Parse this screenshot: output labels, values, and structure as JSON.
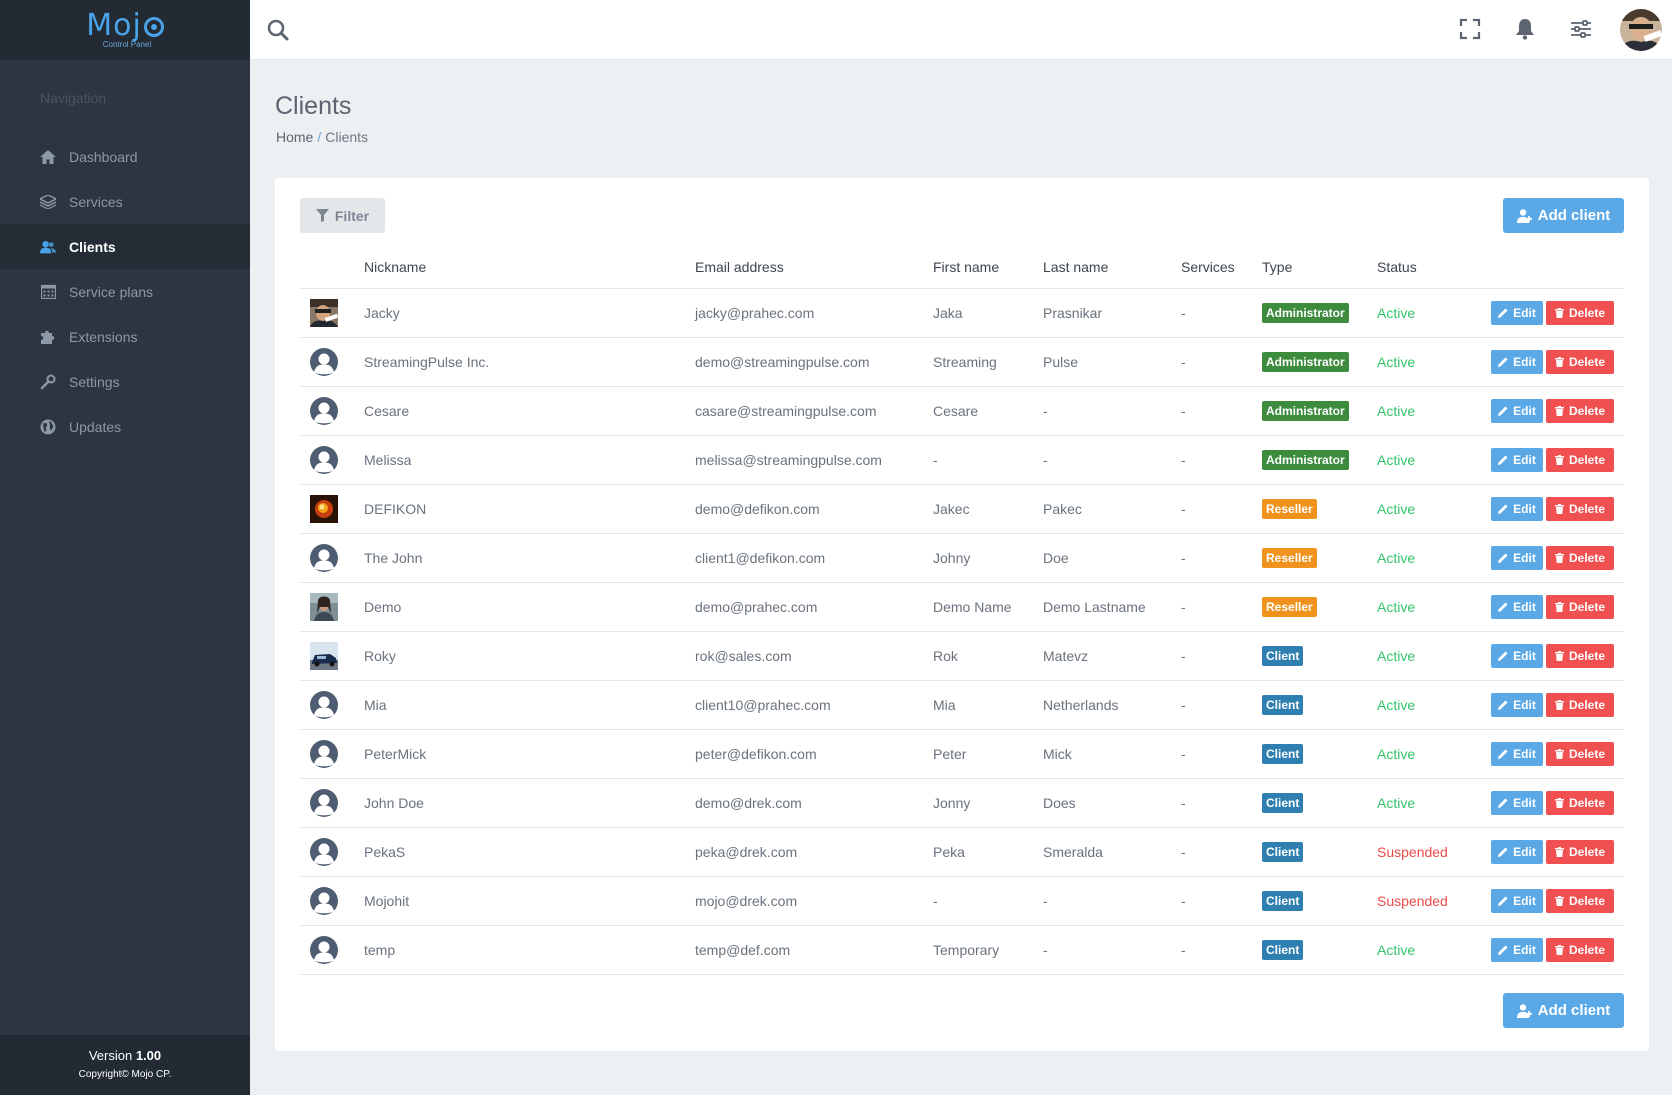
{
  "logo": {
    "name": "Mojo",
    "sub": "Control Panel"
  },
  "sidebar": {
    "heading": "Navigation",
    "items": [
      {
        "label": "Dashboard",
        "icon": "home-icon",
        "active": false
      },
      {
        "label": "Services",
        "icon": "layers-icon",
        "active": false
      },
      {
        "label": "Clients",
        "icon": "users-icon",
        "active": true
      },
      {
        "label": "Service plans",
        "icon": "calendar-icon",
        "active": false
      },
      {
        "label": "Extensions",
        "icon": "puzzle-icon",
        "active": false
      },
      {
        "label": "Settings",
        "icon": "wrench-icon",
        "active": false
      },
      {
        "label": "Updates",
        "icon": "globe-icon",
        "active": false
      }
    ],
    "version_label": "Version",
    "version": "1.00",
    "copyright": "Copyright© Mojo CP."
  },
  "topbar": {
    "icons": [
      "search-icon",
      "fullscreen-icon",
      "bell-icon",
      "sliders-icon",
      "user-avatar"
    ]
  },
  "page": {
    "title": "Clients",
    "breadcrumb": {
      "home": "Home",
      "separator": "/",
      "current": "Clients"
    }
  },
  "toolbar": {
    "filter_label": "Filter",
    "add_label": "Add client"
  },
  "table": {
    "headers": {
      "nickname": "Nickname",
      "email": "Email address",
      "first": "First name",
      "last": "Last name",
      "services": "Services",
      "type": "Type",
      "status": "Status"
    },
    "edit_label": "Edit",
    "delete_label": "Delete",
    "rows": [
      {
        "avatar": "photo-1",
        "nickname": "Jacky",
        "email": "jacky@prahec.com",
        "first": "Jaka",
        "last": "Prasnikar",
        "services": "-",
        "type": "Administrator",
        "status": "Active"
      },
      {
        "avatar": "default",
        "nickname": "StreamingPulse Inc.",
        "email": "demo@streamingpulse.com",
        "first": "Streaming",
        "last": "Pulse",
        "services": "-",
        "type": "Administrator",
        "status": "Active"
      },
      {
        "avatar": "default",
        "nickname": "Cesare",
        "email": "casare@streamingpulse.com",
        "first": "Cesare",
        "last": "-",
        "services": "-",
        "type": "Administrator",
        "status": "Active"
      },
      {
        "avatar": "default",
        "nickname": "Melissa",
        "email": "melissa@streamingpulse.com",
        "first": "-",
        "last": "-",
        "services": "-",
        "type": "Administrator",
        "status": "Active"
      },
      {
        "avatar": "photo-2",
        "nickname": "DEFIKON",
        "email": "demo@defikon.com",
        "first": "Jakec",
        "last": "Pakec",
        "services": "-",
        "type": "Reseller",
        "status": "Active"
      },
      {
        "avatar": "default",
        "nickname": "The John",
        "email": "client1@defikon.com",
        "first": "Johny",
        "last": "Doe",
        "services": "-",
        "type": "Reseller",
        "status": "Active"
      },
      {
        "avatar": "photo-3",
        "nickname": "Demo",
        "email": "demo@prahec.com",
        "first": "Demo Name",
        "last": "Demo Lastname",
        "services": "-",
        "type": "Reseller",
        "status": "Active"
      },
      {
        "avatar": "photo-4",
        "nickname": "Roky",
        "email": "rok@sales.com",
        "first": "Rok",
        "last": "Matevz",
        "services": "-",
        "type": "Client",
        "status": "Active"
      },
      {
        "avatar": "default",
        "nickname": "Mia",
        "email": "client10@prahec.com",
        "first": "Mia",
        "last": "Netherlands",
        "services": "-",
        "type": "Client",
        "status": "Active"
      },
      {
        "avatar": "default",
        "nickname": "PeterMick",
        "email": "peter@defikon.com",
        "first": "Peter",
        "last": "Mick",
        "services": "-",
        "type": "Client",
        "status": "Active"
      },
      {
        "avatar": "default",
        "nickname": "John Doe",
        "email": "demo@drek.com",
        "first": "Jonny",
        "last": "Does",
        "services": "-",
        "type": "Client",
        "status": "Active"
      },
      {
        "avatar": "default",
        "nickname": "PekaS",
        "email": "peka@drek.com",
        "first": "Peka",
        "last": "Smeralda",
        "services": "-",
        "type": "Client",
        "status": "Suspended"
      },
      {
        "avatar": "default",
        "nickname": "Mojohit",
        "email": "mojo@drek.com",
        "first": "-",
        "last": "-",
        "services": "-",
        "type": "Client",
        "status": "Suspended"
      },
      {
        "avatar": "default",
        "nickname": "temp",
        "email": "temp@def.com",
        "first": "Temporary",
        "last": "-",
        "services": "-",
        "type": "Client",
        "status": "Active"
      }
    ]
  },
  "colors": {
    "accent": "#5aa9e6",
    "sidebar": "#2c3541",
    "admin": "#3d8b3d",
    "reseller": "#f0931d",
    "client": "#2f7fb1",
    "active": "#34c46a",
    "suspended": "#ec4a4a",
    "delete": "#f05050"
  }
}
